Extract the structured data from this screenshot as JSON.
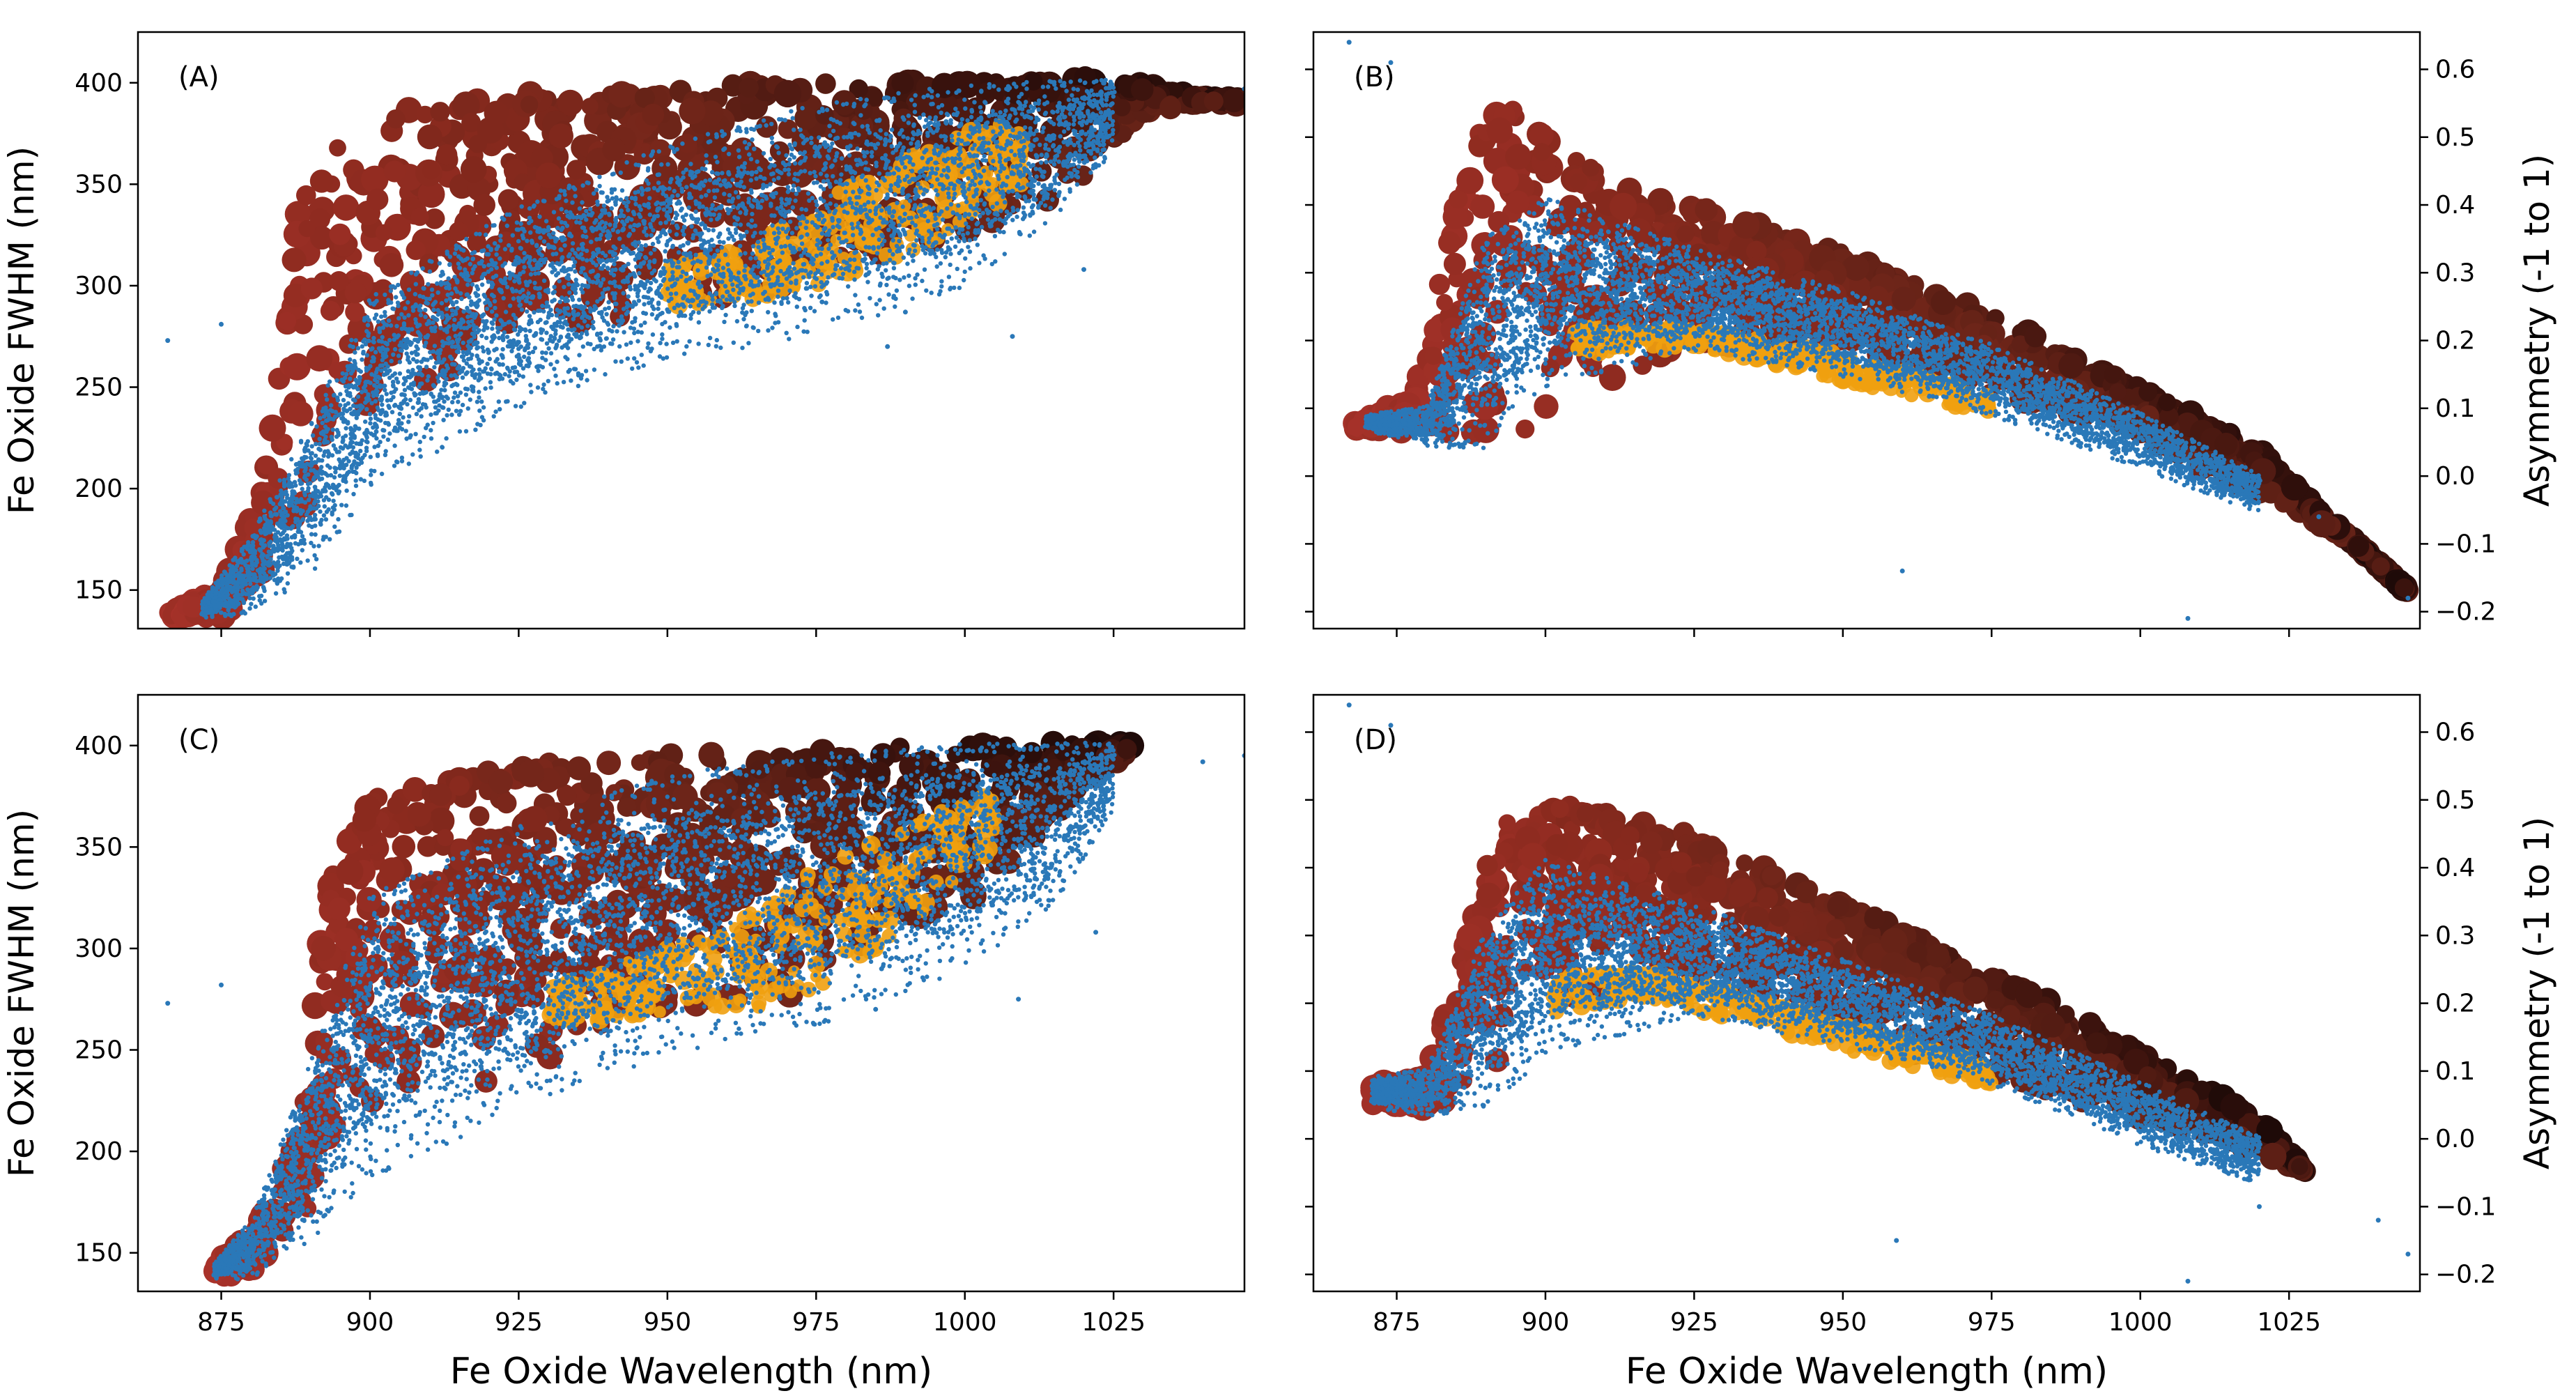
{
  "chart_data": [
    {
      "id": "A",
      "type": "scatter",
      "panel_label": "(A)",
      "xlabel": "",
      "ylabel": "Fe Oxide FWHM (nm)",
      "xlim": [
        861,
        1047
      ],
      "ylim": [
        131,
        425
      ],
      "xticks": [],
      "yticks": [
        "150",
        "200",
        "250",
        "300",
        "350",
        "400"
      ],
      "ytick_side": "left",
      "series": [
        {
          "name": "gradient points (band)",
          "color_scale": [
            "#a8322a",
            "#8a2a1e",
            "#6a2418",
            "#3e140e",
            "#1e0a08"
          ],
          "envelope": {
            "x": [
              866,
              875,
              882,
              888,
              895,
              905,
              925,
              950,
              975,
              1000,
              1020,
              1030,
              1040,
              1046
            ],
            "upper": [
              140,
              150,
              200,
              340,
              375,
              388,
              395,
              398,
              400,
              401,
              403,
              400,
              393,
              392
            ],
            "lower": [
              135,
              136,
              150,
              185,
              215,
              245,
              270,
              285,
              300,
              320,
              350,
              385,
              390,
              390
            ]
          }
        },
        {
          "name": "orange underlayer",
          "color": "#f0a010",
          "envelope": {
            "x": [
              950,
              965,
              975,
              990,
              1010
            ],
            "upper": [
              310,
              320,
              340,
              365,
              385
            ],
            "lower": [
              290,
              293,
              300,
              315,
              345
            ]
          }
        },
        {
          "name": "blue points",
          "color": "#2a78b8",
          "envelope": {
            "x": [
              872,
              880,
              890,
              900,
              925,
              950,
              975,
              1000,
              1015,
              1025
            ],
            "upper": [
              145,
              175,
              230,
              290,
              335,
              365,
              385,
              395,
              398,
              400
            ],
            "lower": [
              137,
              142,
              165,
              210,
              250,
              275,
              285,
              310,
              340,
              370
            ]
          },
          "outliers": [
            [
              866,
              273
            ],
            [
              875,
              281
            ],
            [
              976,
              292
            ],
            [
              990,
              287
            ],
            [
              1008,
              275
            ],
            [
              1020,
              308
            ],
            [
              1047,
              397
            ],
            [
              987,
              270
            ]
          ]
        }
      ]
    },
    {
      "id": "B",
      "type": "scatter",
      "panel_label": "(B)",
      "xlabel": "",
      "ylabel": "Asymmetry (-1 to 1)",
      "xlim": [
        861,
        1047
      ],
      "ylim": [
        -0.225,
        0.655
      ],
      "xticks": [],
      "yticks": [
        "−0.2",
        "−0.1",
        "0.0",
        "0.1",
        "0.2",
        "0.3",
        "0.4",
        "0.5",
        "0.6"
      ],
      "ytick_side": "right",
      "series": [
        {
          "name": "gradient points (band)",
          "color_scale": [
            "#a8322a",
            "#8a2a1e",
            "#6a2418",
            "#3e140e",
            "#1e0a08"
          ],
          "envelope": {
            "x": [
              868,
              878,
              888,
              895,
              905,
              925,
              950,
              975,
              1000,
              1020,
              1035,
              1045
            ],
            "upper": [
              0.08,
              0.12,
              0.52,
              0.55,
              0.47,
              0.4,
              0.33,
              0.24,
              0.13,
              0.04,
              -0.09,
              -0.17
            ],
            "lower": [
              0.07,
              0.06,
              0.03,
              0.05,
              0.12,
              0.19,
              0.18,
              0.12,
              0.05,
              -0.03,
              -0.09,
              -0.17
            ]
          }
        },
        {
          "name": "orange underlayer",
          "color": "#f0a010",
          "envelope": {
            "x": [
              905,
              925,
              950,
              975
            ],
            "upper": [
              0.22,
              0.22,
              0.18,
              0.12
            ],
            "lower": [
              0.18,
              0.19,
              0.14,
              0.09
            ]
          }
        },
        {
          "name": "blue points",
          "color": "#2a78b8",
          "envelope": {
            "x": [
              870,
              880,
              890,
              900,
              925,
              950,
              975,
              1000,
              1020
            ],
            "upper": [
              0.09,
              0.1,
              0.34,
              0.4,
              0.33,
              0.27,
              0.19,
              0.09,
              0.0
            ],
            "lower": [
              0.07,
              0.05,
              0.07,
              0.16,
              0.2,
              0.16,
              0.1,
              0.02,
              -0.05
            ]
          },
          "outliers": [
            [
              867,
              0.64
            ],
            [
              874,
              0.61
            ],
            [
              960,
              -0.14
            ],
            [
              1008,
              -0.21
            ],
            [
              1045,
              -0.18
            ],
            [
              1030,
              -0.06
            ]
          ]
        }
      ]
    },
    {
      "id": "C",
      "type": "scatter",
      "panel_label": "(C)",
      "xlabel": "Fe Oxide Wavelength (nm)",
      "ylabel": "Fe Oxide FWHM (nm)",
      "xlim": [
        861,
        1047
      ],
      "ylim": [
        131,
        425
      ],
      "xticks": [
        "875",
        "900",
        "925",
        "950",
        "975",
        "1000",
        "1025"
      ],
      "yticks": [
        "150",
        "200",
        "250",
        "300",
        "350",
        "400"
      ],
      "ytick_side": "left",
      "series": [
        {
          "name": "gradient points (band)",
          "color_scale": [
            "#a8322a",
            "#8a2a1e",
            "#6a2418",
            "#3e140e",
            "#1e0a08"
          ],
          "envelope": {
            "x": [
              874,
              880,
              888,
              893,
              900,
              925,
              950,
              975,
              1000,
              1015,
              1025,
              1028
            ],
            "upper": [
              145,
              160,
              210,
              340,
              375,
              390,
              396,
              398,
              400,
              402,
              402,
              400
            ],
            "lower": [
              138,
              138,
              150,
              180,
              215,
              240,
              265,
              275,
              320,
              360,
              390,
              395
            ]
          }
        },
        {
          "name": "orange underlayer",
          "color": "#f0a010",
          "envelope": {
            "x": [
              930,
              950,
              965,
              975,
              990,
              1005
            ],
            "upper": [
              280,
              300,
              320,
              340,
              360,
              380
            ],
            "lower": [
              262,
              268,
              270,
              280,
              310,
              350
            ]
          }
        },
        {
          "name": "blue points",
          "color": "#2a78b8",
          "envelope": {
            "x": [
              874,
              880,
              890,
              900,
              925,
              950,
              975,
              1000,
              1015,
              1025
            ],
            "upper": [
              145,
              165,
              240,
              320,
              355,
              380,
              390,
              396,
              398,
              400
            ],
            "lower": [
              138,
              140,
              165,
              200,
              235,
              262,
              275,
              300,
              330,
              370
            ]
          },
          "outliers": [
            [
              866,
              273
            ],
            [
              875,
              282
            ],
            [
              1009,
              275
            ],
            [
              1022,
              308
            ],
            [
              986,
              290
            ],
            [
              985,
              270
            ],
            [
              1047,
              395
            ],
            [
              1040,
              392
            ]
          ]
        }
      ]
    },
    {
      "id": "D",
      "type": "scatter",
      "panel_label": "(D)",
      "xlabel": "Fe Oxide Wavelength (nm)",
      "ylabel": "Asymmetry (-1 to 1)",
      "xlim": [
        861,
        1047
      ],
      "ylim": [
        -0.225,
        0.655
      ],
      "xticks": [
        "875",
        "900",
        "925",
        "950",
        "975",
        "1000",
        "1025"
      ],
      "yticks": [
        "−0.2",
        "−0.1",
        "0.0",
        "0.1",
        "0.2",
        "0.3",
        "0.4",
        "0.5",
        "0.6"
      ],
      "ytick_side": "right",
      "series": [
        {
          "name": "gradient points (band)",
          "color_scale": [
            "#a8322a",
            "#8a2a1e",
            "#6a2418",
            "#3e140e",
            "#1e0a08"
          ],
          "envelope": {
            "x": [
              871,
              880,
              888,
              895,
              905,
              925,
              950,
              975,
              1000,
              1020,
              1028
            ],
            "upper": [
              0.08,
              0.09,
              0.36,
              0.5,
              0.49,
              0.45,
              0.35,
              0.25,
              0.13,
              0.03,
              -0.05
            ],
            "lower": [
              0.05,
              0.04,
              0.07,
              0.14,
              0.2,
              0.22,
              0.15,
              0.09,
              0.03,
              -0.02,
              -0.05
            ]
          }
        },
        {
          "name": "orange underlayer",
          "color": "#f0a010",
          "envelope": {
            "x": [
              900,
              915,
              935,
              955,
              975
            ],
            "upper": [
              0.24,
              0.25,
              0.21,
              0.16,
              0.11
            ],
            "lower": [
              0.18,
              0.21,
              0.17,
              0.12,
              0.08
            ]
          }
        },
        {
          "name": "blue points",
          "color": "#2a78b8",
          "envelope": {
            "x": [
              871,
              880,
              890,
              900,
              925,
              950,
              975,
              1000,
              1020
            ],
            "upper": [
              0.09,
              0.1,
              0.3,
              0.4,
              0.34,
              0.26,
              0.18,
              0.08,
              0.0
            ],
            "lower": [
              0.05,
              0.04,
              0.07,
              0.15,
              0.2,
              0.15,
              0.09,
              0.0,
              -0.06
            ]
          },
          "outliers": [
            [
              867,
              0.64
            ],
            [
              874,
              0.61
            ],
            [
              959,
              -0.15
            ],
            [
              1008,
              -0.21
            ],
            [
              1040,
              -0.12
            ],
            [
              1045,
              -0.17
            ],
            [
              1020,
              -0.1
            ]
          ]
        }
      ]
    }
  ]
}
